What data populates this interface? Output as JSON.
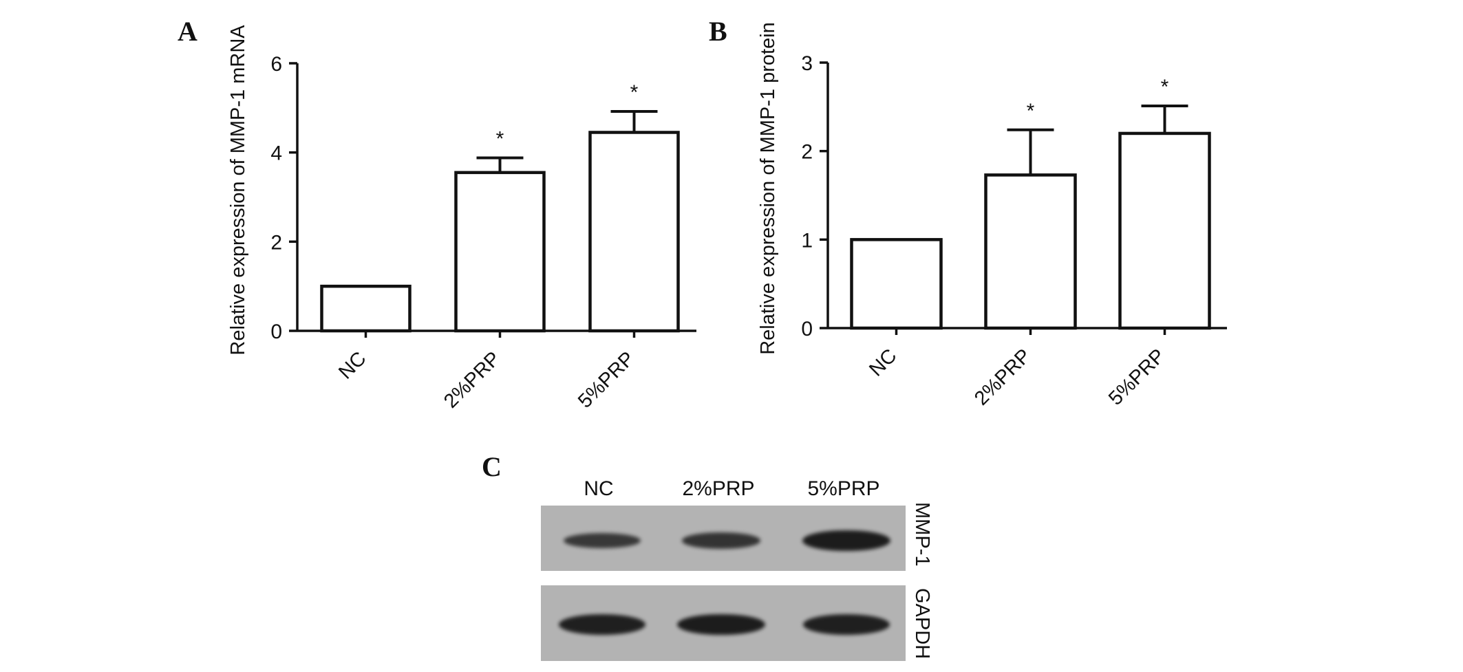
{
  "panel_labels": [
    "A",
    "B",
    "C"
  ],
  "chart_data": [
    {
      "type": "bar",
      "panel": "A",
      "categories": [
        "NC",
        "2%PRP",
        "5%PRP"
      ],
      "values": [
        1.0,
        3.55,
        4.45
      ],
      "error_upper": [
        0,
        0.33,
        0.47
      ],
      "significance": [
        "",
        "*",
        "*"
      ],
      "ylabel": "Relative expression of MMP-1 mRNA",
      "ylim": [
        0,
        6
      ],
      "yticks": [
        0,
        2,
        4,
        6
      ],
      "grid": false
    },
    {
      "type": "bar",
      "panel": "B",
      "categories": [
        "NC",
        "2%PRP",
        "5%PRP"
      ],
      "values": [
        1.0,
        1.73,
        2.2
      ],
      "error_upper": [
        0,
        0.51,
        0.31
      ],
      "significance": [
        "",
        "*",
        "*"
      ],
      "ylabel": "Relative expression of MMP-1 protein",
      "ylim": [
        0,
        3
      ],
      "yticks": [
        0,
        1,
        2,
        3
      ],
      "grid": false
    }
  ],
  "blot": {
    "lanes": [
      "NC",
      "2%PRP",
      "5%PRP"
    ],
    "rows": [
      {
        "name": "MMP-1",
        "intensity": [
          0.55,
          0.62,
          0.95
        ]
      },
      {
        "name": "GAPDH",
        "intensity": [
          0.9,
          0.95,
          0.9
        ]
      }
    ]
  }
}
